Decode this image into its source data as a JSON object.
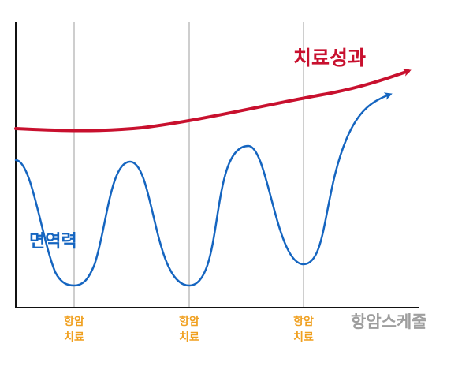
{
  "diagram": {
    "outcome_label": "치료성과",
    "immunity_label": "면역력",
    "x_axis_label": "항암스케줄",
    "treatment_ticks": [
      {
        "line1": "항암",
        "line2": "치료"
      },
      {
        "line1": "항암",
        "line2": "치료"
      },
      {
        "line1": "항암",
        "line2": "치료"
      }
    ],
    "colors": {
      "outcome": "#c8102e",
      "immunity": "#1565c0",
      "tick_text": "#f0a020",
      "axis": "#111111",
      "gridline": "#9e9e9e",
      "axis_label": "#9e9e9e"
    }
  }
}
